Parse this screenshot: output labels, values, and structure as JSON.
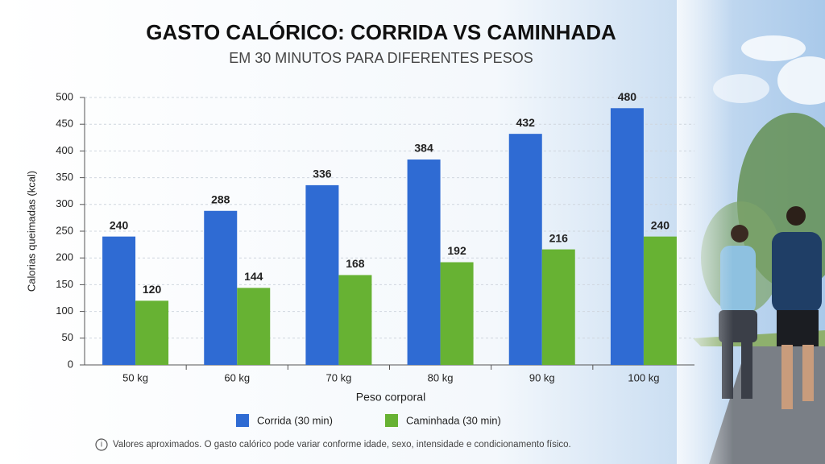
{
  "chart_data": {
    "type": "bar",
    "title": "GASTO CALÓRICO: CORRIDA VS CAMINHADA",
    "subtitle": "EM 30 MINUTOS PARA DIFERENTES PESOS",
    "x_label": "Peso corporal",
    "y_label": "Calorias queimadas (kcal)",
    "categories": [
      "50 kg",
      "60 kg",
      "70 kg",
      "80 kg",
      "90 kg",
      "100 kg"
    ],
    "series": [
      {
        "name": "Corrida (30 min)",
        "color": "#2f6bd3",
        "values": [
          240,
          288,
          336,
          384,
          432,
          480
        ]
      },
      {
        "name": "Caminhada (30 min)",
        "color": "#67b233",
        "values": [
          120,
          144,
          168,
          192,
          216,
          240
        ]
      }
    ],
    "ylim": [
      0,
      500
    ],
    "yticks": [
      0,
      50,
      100,
      150,
      200,
      250,
      300,
      350,
      400,
      450,
      500
    ],
    "grid": true,
    "legend": "bottom",
    "note": "Valores aproximados. O gasto calórico pode variar conforme idade, sexo, intensidade e condicionamento físico."
  }
}
